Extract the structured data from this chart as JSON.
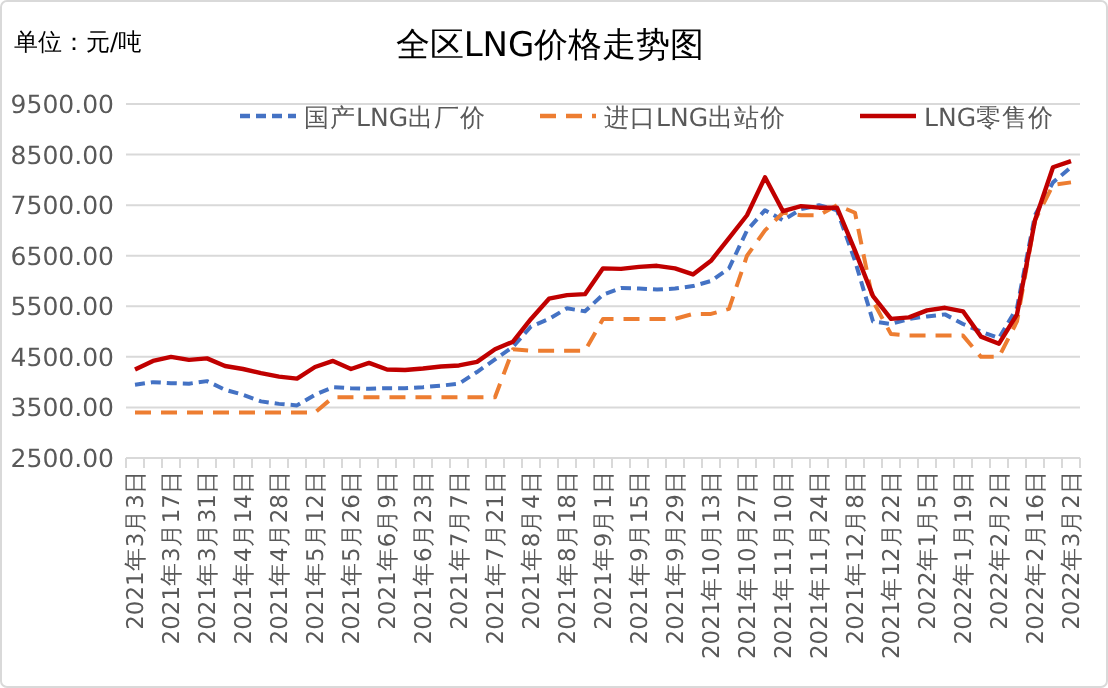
{
  "chart_data": {
    "type": "line",
    "title": "全区LNG价格走势图",
    "annotations": [
      "单位：元/吨"
    ],
    "categories": [
      "2021年3月3日",
      null,
      "2021年3月17日",
      null,
      "2021年3月31日",
      null,
      "2021年4月14日",
      null,
      "2021年4月28日",
      null,
      "2021年5月12日",
      null,
      "2021年5月26日",
      null,
      "2021年6月9日",
      null,
      "2021年6月23日",
      null,
      "2021年7月7日",
      null,
      "2021年7月21日",
      null,
      "2021年8月4日",
      null,
      "2021年8月18日",
      null,
      "2021年9月1日",
      null,
      "2021年9月15日",
      null,
      "2021年9月29日",
      null,
      "2021年10月13日",
      null,
      "2021年10月27日",
      null,
      "2021年11月10日",
      null,
      "2021年11月24日",
      null,
      "2021年12月8日",
      null,
      "2021年12月22日",
      null,
      "2022年1月5日",
      null,
      "2022年1月19日",
      null,
      "2022年2月2日",
      null,
      "2022年2月16日",
      null,
      "2022年3月2日"
    ],
    "series": [
      {
        "name": "国产LNG出厂价",
        "color": "#4472c4",
        "line_style": "dashed",
        "values": [
          3950,
          4000,
          3980,
          3970,
          4020,
          3850,
          3750,
          3620,
          3570,
          3540,
          3750,
          3900,
          3880,
          3870,
          3880,
          3880,
          3900,
          3930,
          3970,
          4200,
          4450,
          4700,
          5100,
          5250,
          5460,
          5400,
          5730,
          5860,
          5850,
          5830,
          5850,
          5900,
          6000,
          6250,
          7000,
          7400,
          7200,
          7420,
          7500,
          7400,
          6400,
          5200,
          5150,
          5250,
          5300,
          5340,
          5150,
          5000,
          4870,
          5470,
          7300,
          7950,
          8250
        ]
      },
      {
        "name": "进口LNG出站价",
        "color": "#ed7d31",
        "line_style": "dashed",
        "values": [
          3400,
          3400,
          3400,
          3400,
          3400,
          3400,
          3400,
          3400,
          3400,
          3400,
          3400,
          3700,
          3700,
          3700,
          3700,
          3700,
          3700,
          3700,
          3700,
          3700,
          3700,
          4650,
          4620,
          4620,
          4620,
          4620,
          5250,
          5250,
          5250,
          5250,
          5250,
          5350,
          5350,
          5450,
          6500,
          7000,
          7350,
          7300,
          7300,
          7500,
          7350,
          5600,
          4950,
          4920,
          4920,
          4920,
          4920,
          4500,
          4500,
          5200,
          7200,
          7900,
          7950
        ]
      },
      {
        "name": "LNG零售价",
        "color": "#c00000",
        "line_style": "solid",
        "values": [
          4250,
          4420,
          4500,
          4440,
          4470,
          4320,
          4260,
          4180,
          4110,
          4070,
          4300,
          4420,
          4260,
          4380,
          4250,
          4240,
          4270,
          4310,
          4330,
          4400,
          4650,
          4800,
          5250,
          5650,
          5720,
          5740,
          6250,
          6240,
          6280,
          6300,
          6250,
          6130,
          6400,
          6850,
          7300,
          8050,
          7380,
          7480,
          7450,
          7450,
          6600,
          5700,
          5250,
          5280,
          5420,
          5470,
          5400,
          4900,
          4760,
          5340,
          7200,
          8250,
          8370
        ]
      }
    ],
    "ylim": [
      2500,
      9500
    ],
    "yticks": [
      {
        "value": 2500,
        "label": "2500.00"
      },
      {
        "value": 3500,
        "label": "3500.00"
      },
      {
        "value": 4500,
        "label": "4500.00"
      },
      {
        "value": 5500,
        "label": "5500.00"
      },
      {
        "value": 6500,
        "label": "6500.00"
      },
      {
        "value": 7500,
        "label": "7500.00"
      },
      {
        "value": 8500,
        "label": "8500.00"
      },
      {
        "value": 9500,
        "label": "9500.00"
      }
    ],
    "grid": "y",
    "legend": "top"
  }
}
